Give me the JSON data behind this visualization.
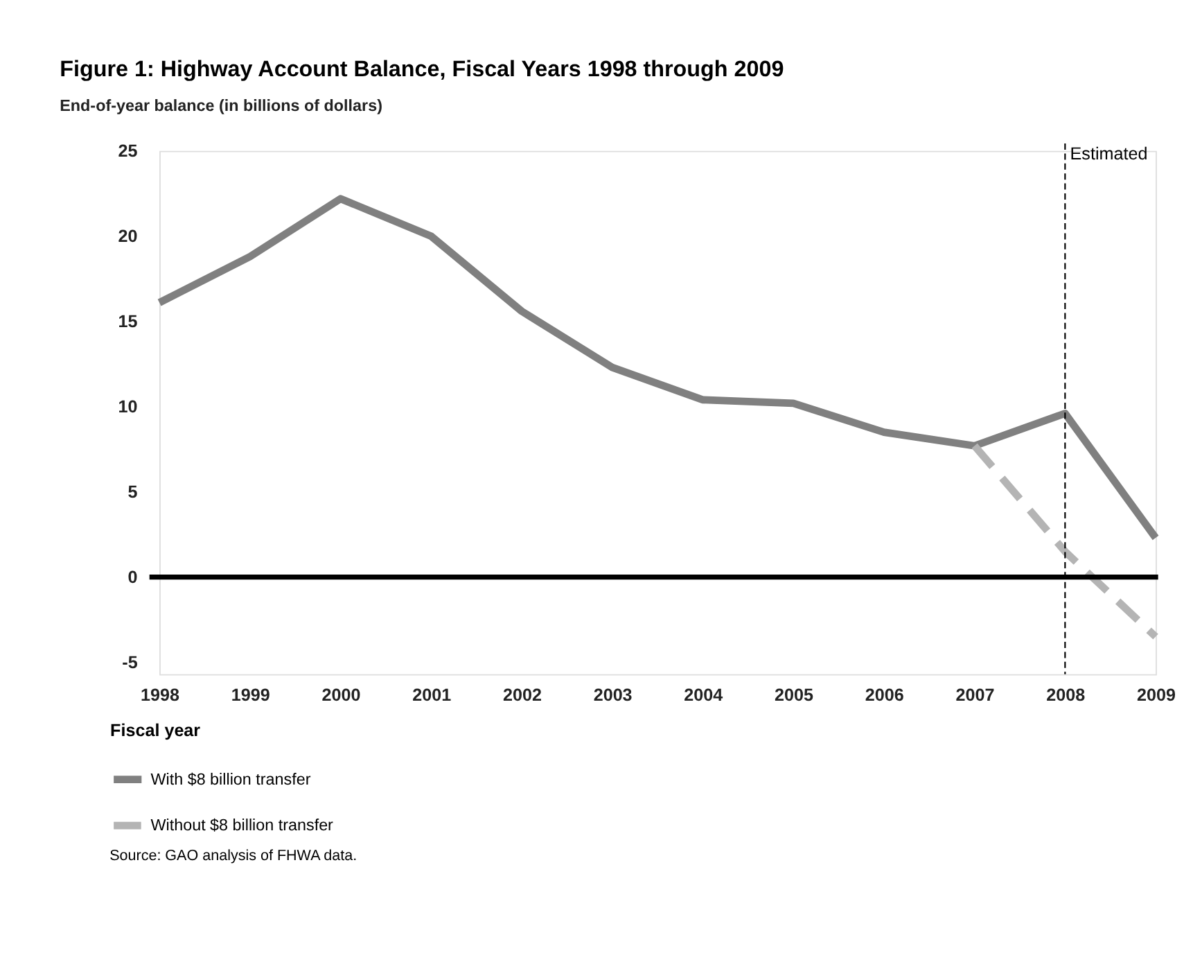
{
  "chart_data": {
    "type": "line",
    "title": "Figure 1: Highway Account Balance, Fiscal Years 1998 through 2009",
    "ylabel": "End-of-year balance (in billions of dollars)",
    "xlabel": "Fiscal year",
    "x": [
      1998,
      1999,
      2000,
      2001,
      2002,
      2003,
      2004,
      2005,
      2006,
      2007,
      2008,
      2009
    ],
    "series": [
      {
        "name": "With $8 billion transfer",
        "color": "#808080",
        "line_style": "solid",
        "values": [
          16.1,
          18.8,
          22.2,
          20.0,
          15.6,
          12.3,
          10.4,
          10.2,
          8.5,
          7.7,
          9.6,
          2.3
        ]
      },
      {
        "name": "Without $8 billion transfer",
        "color": "#b4b4b4",
        "line_style": "dashed",
        "values": [
          null,
          null,
          null,
          null,
          null,
          null,
          null,
          null,
          null,
          7.7,
          1.5,
          -3.5
        ]
      }
    ],
    "xlim": [
      1998,
      2009
    ],
    "xticks": [
      1998,
      1999,
      2000,
      2001,
      2002,
      2003,
      2004,
      2005,
      2006,
      2007,
      2008,
      2009
    ],
    "ylim": [
      -5.7,
      25
    ],
    "yticks": [
      -5,
      0,
      5,
      10,
      15,
      20,
      25
    ],
    "ref_lines": [
      {
        "axis": "y",
        "value": 0,
        "color": "#000000",
        "line_style": "solid"
      },
      {
        "axis": "x",
        "value": 2008,
        "label": "Estimated",
        "color": "#000000",
        "line_style": "dotted"
      }
    ],
    "grid": false,
    "legend": "bottom left",
    "marker": "none",
    "annotations": [
      "Source: GAO analysis of FHWA data."
    ]
  }
}
